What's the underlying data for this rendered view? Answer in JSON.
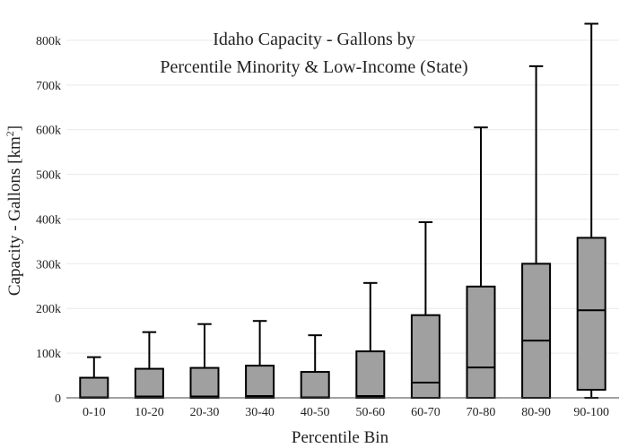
{
  "chart_data": {
    "type": "box",
    "title_lines": [
      "Idaho Capacity - Gallons by",
      "Percentile Minority & Low-Income (State)"
    ],
    "xlabel": "Percentile Bin",
    "ylabel": "Capacity - Gallons",
    "ylabel_unit": "[km",
    "ylabel_unit_sup": "2",
    "ylabel_unit_end": "]",
    "ylim": [
      0,
      850000
    ],
    "yticks": [
      0,
      100000,
      200000,
      300000,
      400000,
      500000,
      600000,
      700000,
      800000
    ],
    "ytick_labels": [
      "0",
      "100k",
      "200k",
      "300k",
      "400k",
      "500k",
      "600k",
      "700k",
      "800k"
    ],
    "grid": true,
    "categories": [
      "0-10",
      "10-20",
      "20-30",
      "30-40",
      "40-50",
      "50-60",
      "60-70",
      "70-80",
      "80-90",
      "90-100"
    ],
    "boxes": [
      {
        "min": 0,
        "q1": 0,
        "median": 1000,
        "q3": 45000,
        "max": 91000
      },
      {
        "min": 0,
        "q1": 0,
        "median": 3000,
        "q3": 65000,
        "max": 147000
      },
      {
        "min": 0,
        "q1": 0,
        "median": 3000,
        "q3": 67000,
        "max": 165000
      },
      {
        "min": 0,
        "q1": 0,
        "median": 4000,
        "q3": 72000,
        "max": 172000
      },
      {
        "min": 0,
        "q1": 0,
        "median": 1000,
        "q3": 58000,
        "max": 140000
      },
      {
        "min": 0,
        "q1": 0,
        "median": 4000,
        "q3": 104000,
        "max": 257000
      },
      {
        "min": 0,
        "q1": 0,
        "median": 34000,
        "q3": 185000,
        "max": 393000
      },
      {
        "min": 0,
        "q1": 0,
        "median": 68000,
        "q3": 249000,
        "max": 605000
      },
      {
        "min": 0,
        "q1": 0,
        "median": 128000,
        "q3": 300000,
        "max": 742000
      },
      {
        "min": 0,
        "q1": 18000,
        "median": 196000,
        "q3": 358000,
        "max": 837000
      }
    ],
    "box_fill": "#a0a0a0",
    "box_stroke": "#000000"
  }
}
